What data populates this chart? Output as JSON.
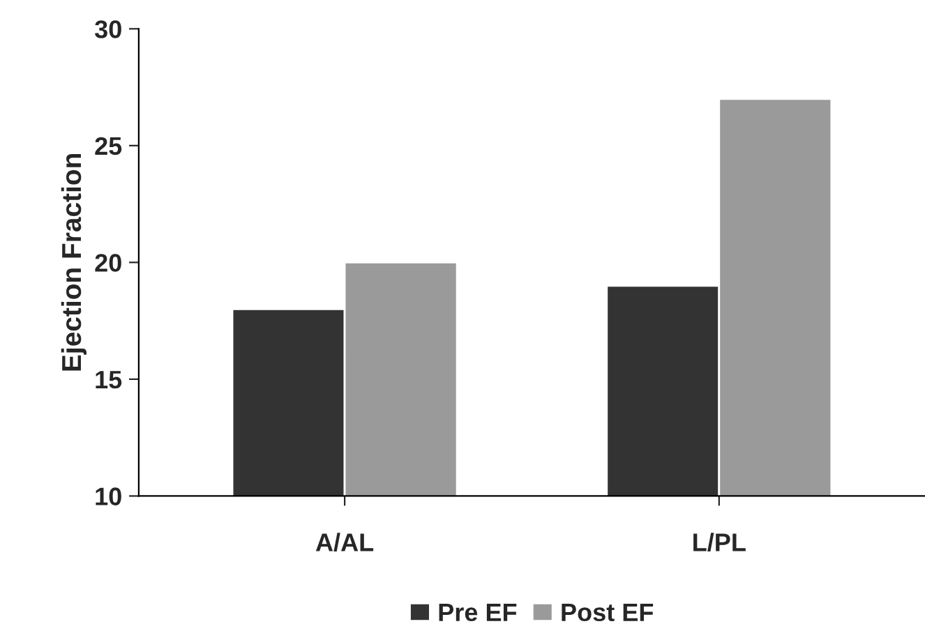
{
  "chart_data": {
    "type": "bar",
    "ylabel": "Ejection Fraction",
    "categories": [
      "A/AL",
      "L/PL"
    ],
    "series": [
      {
        "name": "Pre EF",
        "color": "#333333",
        "values": [
          18,
          19
        ]
      },
      {
        "name": "Post EF",
        "color": "#9a9a9a",
        "values": [
          20,
          27
        ]
      }
    ],
    "ylim": [
      10,
      30
    ],
    "yticks": [
      10,
      15,
      20,
      25,
      30
    ],
    "grid": false,
    "legend": "bottom"
  }
}
